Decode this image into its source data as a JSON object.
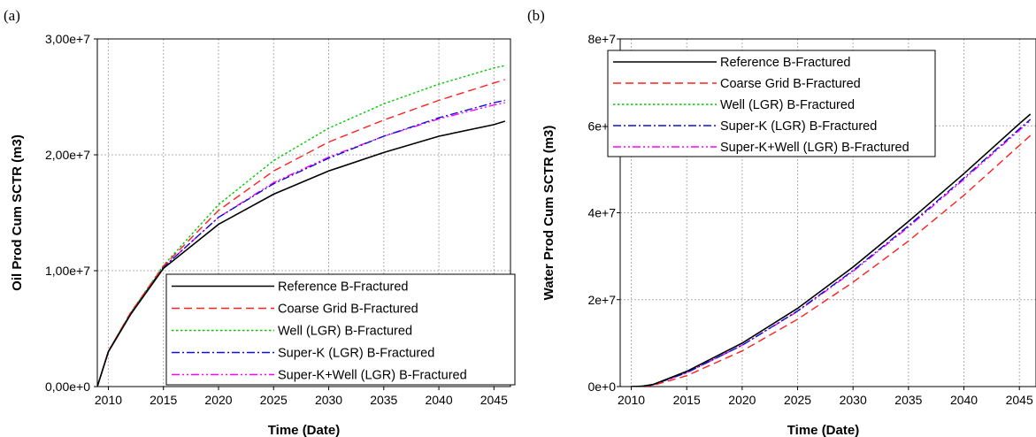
{
  "chart_data": [
    {
      "type": "line",
      "panel_label": "(a)",
      "xlabel": "Time (Date)",
      "ylabel": "Oil Prod Cum SCTR (m3)",
      "xlim": [
        2009,
        2046.5
      ],
      "ylim": [
        0,
        30000000
      ],
      "x_ticks": [
        2010,
        2015,
        2020,
        2025,
        2030,
        2035,
        2040,
        2045
      ],
      "x_tick_labels": [
        "2010",
        "2015",
        "2020",
        "2025",
        "2030",
        "2035",
        "2040",
        "2045"
      ],
      "y_ticks": [
        0,
        10000000,
        20000000,
        30000000
      ],
      "y_tick_labels": [
        "0,00e+0",
        "1,00e+7",
        "2,00e+7",
        "3,00e+7"
      ],
      "grid": true,
      "legend_position": "bottom-right",
      "x": [
        2009,
        2010,
        2012,
        2015,
        2020,
        2025,
        2030,
        2035,
        2040,
        2045,
        2046
      ],
      "series": [
        {
          "name": "Reference B-Fractured",
          "color": "#000000",
          "dash": "solid",
          "values": [
            0,
            3000000,
            6200000,
            10200000,
            14000000,
            16600000,
            18600000,
            20200000,
            21600000,
            22600000,
            22900000
          ]
        },
        {
          "name": "Coarse Grid B-Fractured",
          "color": "#ff2020",
          "dash": "dashed",
          "values": [
            0,
            3050000,
            6350000,
            10400000,
            15200000,
            18600000,
            21100000,
            23000000,
            24700000,
            26200000,
            26500000
          ]
        },
        {
          "name": "Well (LGR) B-Fractured",
          "color": "#00c800",
          "dash": "dotted",
          "values": [
            0,
            3050000,
            6350000,
            10450000,
            15700000,
            19500000,
            22300000,
            24400000,
            26100000,
            27500000,
            27700000
          ]
        },
        {
          "name": "Super-K (LGR) B-Fractured",
          "color": "#1010d0",
          "dash": "dashdot",
          "values": [
            0,
            3050000,
            6300000,
            10300000,
            14600000,
            17500000,
            19700000,
            21600000,
            23200000,
            24500000,
            24700000
          ]
        },
        {
          "name": "Super-K+Well (LGR) B-Fractured",
          "color": "#ff00ff",
          "dash": "dashdotdot",
          "values": [
            0,
            3050000,
            6300000,
            10300000,
            14600000,
            17600000,
            19800000,
            21600000,
            23100000,
            24300000,
            24500000
          ]
        }
      ]
    },
    {
      "type": "line",
      "panel_label": "(b)",
      "xlabel": "Time (Date)",
      "ylabel": "Water Prod Cum SCTR (m3)",
      "xlim": [
        2009,
        2046.5
      ],
      "ylim": [
        0,
        80000000
      ],
      "x_ticks": [
        2010,
        2015,
        2020,
        2025,
        2030,
        2035,
        2040,
        2045
      ],
      "x_tick_labels": [
        "2010",
        "2015",
        "2020",
        "2025",
        "2030",
        "2035",
        "2040",
        "2045"
      ],
      "y_ticks": [
        0,
        20000000,
        40000000,
        60000000,
        80000000
      ],
      "y_tick_labels": [
        "0e+0",
        "2e+7",
        "4e+7",
        "6e+7",
        "8e+7"
      ],
      "grid": true,
      "legend_position": "top-left",
      "x": [
        2010,
        2011,
        2012,
        2015,
        2020,
        2025,
        2030,
        2035,
        2040,
        2045,
        2046
      ],
      "series": [
        {
          "name": "Reference B-Fractured",
          "color": "#000000",
          "dash": "solid",
          "values": [
            0,
            100000,
            500000,
            3500000,
            10000000,
            18000000,
            27500000,
            38000000,
            49000000,
            60500000,
            62700000
          ]
        },
        {
          "name": "Coarse Grid B-Fractured",
          "color": "#ff2020",
          "dash": "dashed",
          "values": [
            0,
            50000,
            300000,
            2500000,
            8200000,
            15500000,
            24000000,
            33500000,
            44000000,
            55500000,
            57800000
          ]
        },
        {
          "name": "Well (LGR) B-Fractured",
          "color": "#00c800",
          "dash": "dotted",
          "values": [
            0,
            100000,
            500000,
            3500000,
            10000000,
            18000000,
            27500000,
            38000000,
            49000000,
            60500000,
            62700000
          ]
        },
        {
          "name": "Super-K (LGR) B-Fractured",
          "color": "#1010d0",
          "dash": "dashdot",
          "values": [
            0,
            80000,
            450000,
            3200000,
            9500000,
            17400000,
            26700000,
            37000000,
            48000000,
            59300000,
            61500000
          ]
        },
        {
          "name": "Super-K+Well (LGR) B-Fractured",
          "color": "#ff00ff",
          "dash": "dashdotdot",
          "values": [
            0,
            80000,
            450000,
            3200000,
            9500000,
            17300000,
            26500000,
            36700000,
            47700000,
            59000000,
            61200000
          ]
        }
      ]
    }
  ]
}
